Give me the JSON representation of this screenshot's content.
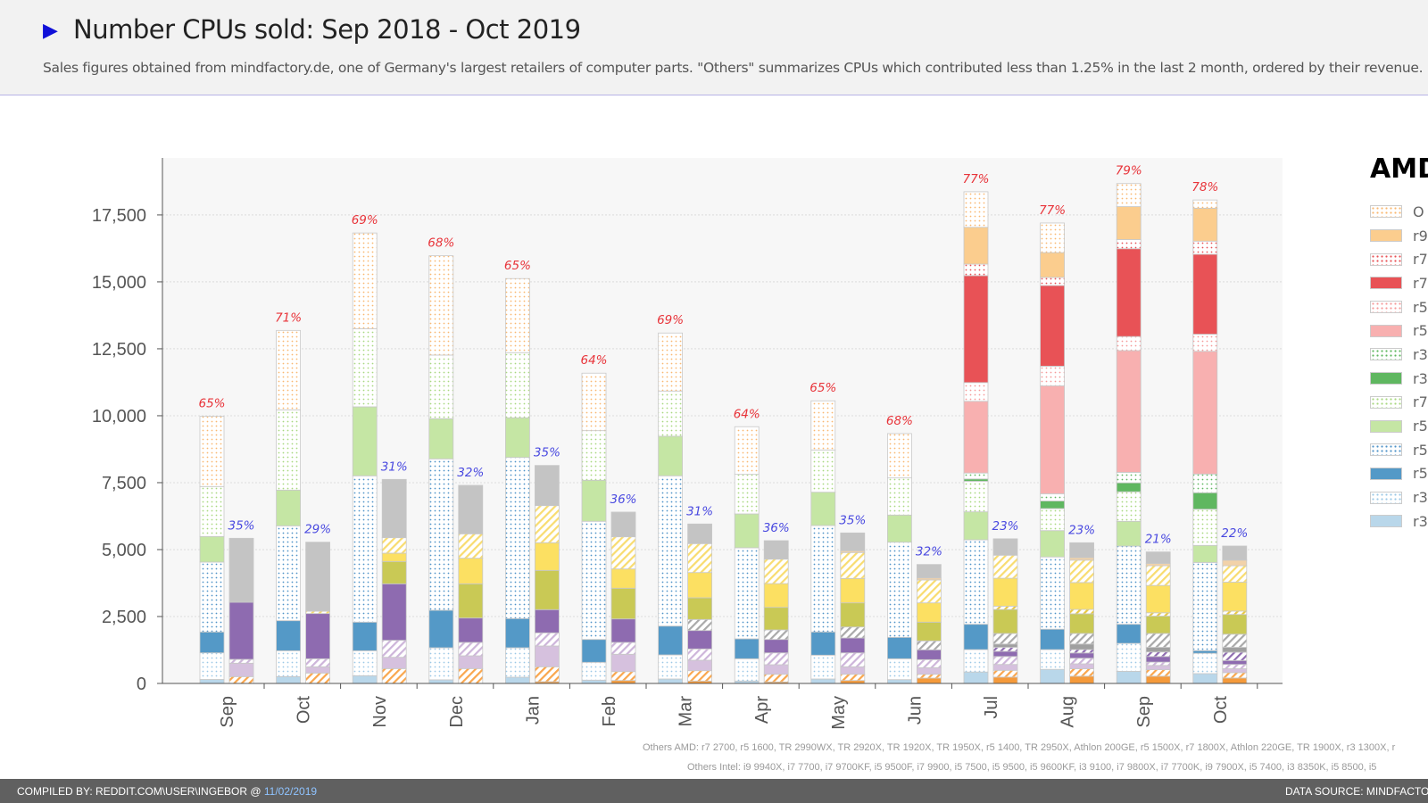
{
  "header": {
    "title": "Number CPUs sold: Sep 2018 - Oct 2019",
    "subtitle": "Sales figures obtained from mindfactory.de, one of Germany's largest retailers of computer parts. \"Others\" summarizes CPUs which contributed less than 1.25% in the last 2 month, ordered by their revenue.",
    "arrow_icon": "play-triangle-icon"
  },
  "legend": {
    "title": "AMD",
    "items": [
      {
        "label": "O",
        "color": "#f9b870",
        "pattern": "dots"
      },
      {
        "label": "r9",
        "color": "#fbcd8e",
        "pattern": "solid"
      },
      {
        "label": "r7",
        "color": "#e85256",
        "pattern": "dots"
      },
      {
        "label": "r7",
        "color": "#e85256",
        "pattern": "solid"
      },
      {
        "label": "r5",
        "color": "#f59a9a",
        "pattern": "dots"
      },
      {
        "label": "r5",
        "color": "#f8b0b0",
        "pattern": "solid"
      },
      {
        "label": "r3",
        "color": "#5fb760",
        "pattern": "dots"
      },
      {
        "label": "r3",
        "color": "#5fb760",
        "pattern": "solid"
      },
      {
        "label": "r7",
        "color": "#a8d880",
        "pattern": "dots"
      },
      {
        "label": "r5",
        "color": "#c5e6a4",
        "pattern": "solid"
      },
      {
        "label": "r5",
        "color": "#4f93c8",
        "pattern": "dots"
      },
      {
        "label": "r5",
        "color": "#5499c7",
        "pattern": "solid"
      },
      {
        "label": "r3",
        "color": "#9cc8e6",
        "pattern": "dots"
      },
      {
        "label": "r3",
        "color": "#b9d7ea",
        "pattern": "solid"
      }
    ]
  },
  "chart_data": {
    "type": "bar",
    "stacked": true,
    "title": "Number CPUs sold: Sep 2018 - Oct 2019",
    "categories": [
      "Sep",
      "Oct",
      "Nov",
      "Dec",
      "Jan",
      "Feb",
      "Mar",
      "Apr",
      "May",
      "Jun",
      "Jul",
      "Aug",
      "Sep",
      "Oct"
    ],
    "ylim": [
      0,
      19630
    ],
    "yticks": [
      0,
      2500,
      5000,
      7500,
      10000,
      12500,
      15000,
      17500
    ],
    "ytick_labels": [
      "0",
      "2,500",
      "5,000",
      "7,500",
      "10,000",
      "12,500",
      "15,000",
      "17,500"
    ],
    "grid": true,
    "legend_position": "right",
    "groups": [
      {
        "name": "AMD",
        "label_color": "#e8343a",
        "share_labels": [
          "65%",
          "71%",
          "69%",
          "68%",
          "65%",
          "64%",
          "69%",
          "64%",
          "65%",
          "68%",
          "77%",
          "77%",
          "79%",
          "78%"
        ],
        "series": [
          {
            "color": "#b9d7ea",
            "pattern": "solid",
            "values": [
              150,
              256,
              289,
              136,
              233,
              123,
              167,
              90,
              167,
              143,
              427,
              527,
              453,
              367
            ]
          },
          {
            "color": "#9cc8e6",
            "pattern": "dots",
            "values": [
              994,
              966,
              933,
              1197,
              1100,
              667,
              900,
              833,
              890,
              780,
              836,
              736,
              1044,
              760
            ]
          },
          {
            "color": "#5499c7",
            "pattern": "solid",
            "values": [
              778,
              1122,
              1067,
              1400,
              1090,
              853,
              1076,
              744,
              866,
              800,
              947,
              763,
              713,
              99
            ]
          },
          {
            "color": "#4f93c8",
            "pattern": "dots",
            "values": [
              2611,
              3545,
              5467,
              5656,
              6020,
              4414,
              5614,
              3400,
              3977,
              3554,
              3156,
              2700,
              2923,
              3294
            ]
          },
          {
            "color": "#c5e6a4",
            "pattern": "solid",
            "values": [
              957,
              1333,
              2577,
              1500,
              1480,
              1533,
              1476,
              1266,
              1243,
              1013,
              1044,
              983,
              923,
              636
            ]
          },
          {
            "color": "#a8d880",
            "pattern": "dots",
            "values": [
              1866,
              3000,
              2920,
              2377,
              2434,
              1853,
              1690,
              1477,
              1580,
              1387,
              1143,
              824,
              1104,
              1353
            ]
          },
          {
            "color": "#5fb760",
            "pattern": "solid",
            "values": [
              0,
              0,
              0,
              0,
              0,
              0,
              0,
              0,
              0,
              0,
              86,
              283,
              333,
              614
            ]
          },
          {
            "color": "#5fb760",
            "pattern": "dots",
            "values": [
              0,
              0,
              0,
              0,
              0,
              0,
              0,
              0,
              0,
              0,
              221,
              270,
              393,
              700
            ]
          },
          {
            "color": "#f8b0b0",
            "pattern": "solid",
            "values": [
              0,
              0,
              0,
              0,
              0,
              0,
              0,
              0,
              0,
              0,
              2679,
              4030,
              4546,
              4583
            ]
          },
          {
            "color": "#f59a9a",
            "pattern": "dots",
            "values": [
              0,
              0,
              0,
              0,
              0,
              0,
              0,
              0,
              0,
              0,
              700,
              736,
              527,
              640
            ]
          },
          {
            "color": "#e85256",
            "pattern": "solid",
            "values": [
              0,
              0,
              0,
              0,
              0,
              0,
              0,
              0,
              0,
              0,
              3994,
              3010,
              3280,
              2983
            ]
          },
          {
            "color": "#e85256",
            "pattern": "dots",
            "values": [
              0,
              0,
              0,
              0,
              0,
              0,
              0,
              0,
              0,
              0,
              430,
              307,
              343,
              493
            ]
          },
          {
            "color": "#fbcd8e",
            "pattern": "solid",
            "values": [
              0,
              0,
              0,
              0,
              0,
              0,
              0,
              0,
              0,
              0,
              1376,
              923,
              1230,
              1230
            ]
          },
          {
            "color": "#f9b870",
            "pattern": "dots",
            "values": [
              2621,
              2965,
              3573,
              3710,
              2766,
              2147,
              2167,
              1780,
              1834,
              1656,
              1327,
              1107,
              860,
              307
            ]
          }
        ]
      },
      {
        "name": "Intel",
        "label_color": "#4a4ae0",
        "share_labels": [
          "35%",
          "29%",
          "31%",
          "32%",
          "35%",
          "36%",
          "31%",
          "36%",
          "35%",
          "32%",
          "23%",
          "23%",
          "21%",
          "22%"
        ],
        "series": [
          {
            "color": "#f59a3a",
            "pattern": "solid",
            "values": [
              0,
              0,
              0,
              0,
              67,
              110,
              90,
              57,
              110,
              200,
              238,
              272,
              272,
              204
            ]
          },
          {
            "color": "#f9a64d",
            "pattern": "hatch",
            "values": [
              256,
              389,
              556,
              556,
              556,
              333,
              387,
              286,
              233,
              143,
              252,
              278,
              241,
              200
            ]
          },
          {
            "color": "#d6c1de",
            "pattern": "solid",
            "values": [
              500,
              233,
              422,
              477,
              777,
              647,
              390,
              357,
              280,
              247,
              220,
              183,
              160,
              146
            ]
          },
          {
            "color": "#cdb5da",
            "pattern": "hatch",
            "values": [
              144,
              300,
              633,
              500,
              490,
              443,
              423,
              443,
              520,
              300,
              297,
              210,
              124,
              160
            ]
          },
          {
            "color": "#8e6bb0",
            "pattern": "solid",
            "values": [
              2133,
              1689,
              2111,
              911,
              867,
              877,
              687,
              500,
              557,
              367,
              193,
              197,
              210,
              147
            ]
          },
          {
            "color": "#8e6bb0",
            "pattern": "hatch",
            "values": [
              0,
              0,
              0,
              0,
              0,
              0,
              0,
              0,
              0,
              0,
              150,
              123,
              170,
              310
            ]
          },
          {
            "color": "#a0a0a0",
            "pattern": "solid",
            "values": [
              0,
              0,
              0,
              0,
              0,
              0,
              0,
              0,
              0,
              0,
              123,
              210,
              173,
              183
            ]
          },
          {
            "color": "#a9a9a9",
            "pattern": "hatch",
            "values": [
              0,
              0,
              0,
              0,
              0,
              0,
              413,
              357,
              410,
              333,
              394,
              394,
              517,
              490
            ]
          },
          {
            "color": "#c9c955",
            "pattern": "solid",
            "values": [
              0,
              0,
              834,
              1278,
              1466,
              1147,
              810,
              843,
              900,
              700,
              896,
              736,
              649,
              736
            ]
          },
          {
            "color": "#e8c840",
            "pattern": "hatch",
            "values": [
              0,
              0,
              0,
              0,
              0,
              0,
              0,
              0,
              0,
              0,
              124,
              160,
              124,
              127
            ]
          },
          {
            "color": "#fce062",
            "pattern": "solid",
            "values": [
              0,
              0,
              310,
              956,
              1034,
              720,
              943,
              886,
              913,
              720,
              1043,
              1007,
              1020,
              1080
            ]
          },
          {
            "color": "#f8dc70",
            "pattern": "hatch",
            "values": [
              0,
              89,
              578,
              911,
              1386,
              1200,
              1080,
              914,
              967,
              857,
              860,
              836,
              736,
              613
            ]
          },
          {
            "color": "#f2d2a9",
            "pattern": "solid",
            "values": [
              0,
              0,
              0,
              0,
              0,
              0,
              0,
              0,
              67,
              76,
              0,
              97,
              87,
              210
            ]
          },
          {
            "color": "#c4c4c4",
            "pattern": "solid",
            "values": [
              2389,
              2577,
              2178,
              1811,
              1500,
              923,
              734,
              690,
              666,
              500,
              613,
              553,
              430,
              527
            ]
          }
        ]
      }
    ]
  },
  "notes": {
    "others_amd": "Others AMD: r7 2700, r5 1600, TR 2990WX, TR 2920X, TR 1920X, TR 1950X, r5 1400, TR 2950X, Athlon 200GE, r5 1500X, r7 1800X, Athlon 220GE, TR 1900X, r3 1300X, r",
    "others_intel": "Others Intel: i9 9940X, i7 7700, i7 9700KF, i5 9500F, i7 9900, i5 7500, i5 9500, i5 9600KF, i3 9100, i7 9800X, i7 7700K, i9 7900X, i5 7400, i3 8350K, i5 8500, i5 "
  },
  "footer": {
    "compiled_by": "COMPILED BY: REDDIT.COM\\USER\\INGEBOR @ ",
    "date": "11/02/2019",
    "data_source": "DATA SOURCE: MINDFACTOR"
  }
}
